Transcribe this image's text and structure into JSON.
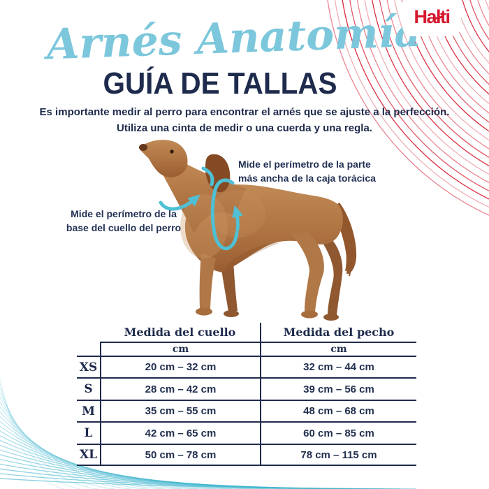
{
  "brand": {
    "logo_text": "Halti",
    "logo_color": "#d5182f"
  },
  "header": {
    "script_title": "Arnés Anatomía",
    "main_title": "GUÍA DE TALLAS",
    "intro_line1": "Es importante medir al perro para encontrar el arnés que se ajuste a la perfección.",
    "intro_line2": "Utiliza una cinta de medir o una cuerda y una regla."
  },
  "diagram": {
    "neck_note_line1": "Mide el perímetro de la",
    "neck_note_line2": "base del cuello del perro",
    "chest_note_line1": "Mide el perímetro de la parte",
    "chest_note_line2": "más ancha de la caja torácica",
    "arrow_color": "#4fc0d4",
    "dog_color": "#ae7342"
  },
  "table": {
    "columns": {
      "neck_header": "Medida del cuello",
      "chest_header": "Medida del pecho"
    },
    "units": {
      "neck_unit": "cm",
      "chest_unit": "cm"
    },
    "rows": [
      {
        "size": "XS",
        "neck": "20 cm – 32 cm",
        "chest": "32 cm – 44 cm"
      },
      {
        "size": "S",
        "neck": "28 cm – 42 cm",
        "chest": "39 cm – 56 cm"
      },
      {
        "size": "M",
        "neck": "35 cm – 55 cm",
        "chest": "48 cm – 68 cm"
      },
      {
        "size": "L",
        "neck": "42 cm – 65 cm",
        "chest": "60 cm – 85 cm"
      },
      {
        "size": "XL",
        "neck": "50 cm – 78 cm",
        "chest": "78 cm – 115 cm"
      }
    ]
  },
  "colors": {
    "navy_text": "#1e2b4c",
    "teal_accent": "#4fc0d4",
    "script_blue": "#7cc7dc",
    "brand_red": "#d5182f"
  }
}
